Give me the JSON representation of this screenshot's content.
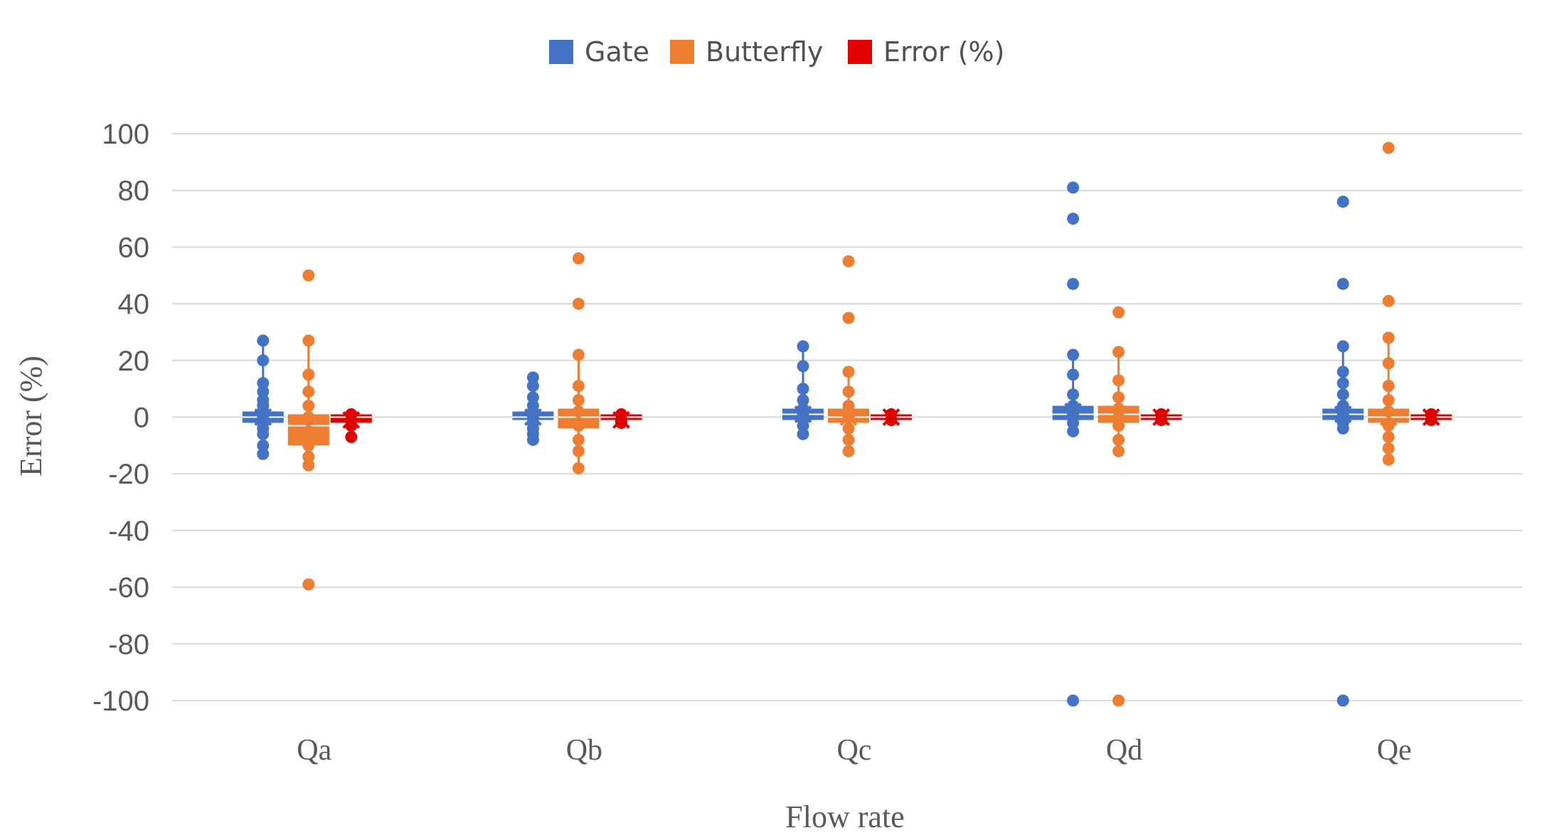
{
  "chart_data": {
    "type": "box",
    "title": "",
    "xlabel": "Flow rate",
    "ylabel": "Error (%)",
    "ylim": [
      -100,
      100
    ],
    "yticks": [
      100,
      80,
      60,
      40,
      20,
      0,
      -20,
      -40,
      -60,
      -80,
      -100
    ],
    "grid": true,
    "legend_position": "top-center",
    "categories": [
      "Qa",
      "Qb",
      "Qc",
      "Qd",
      "Qe"
    ],
    "series": [
      {
        "name": "Gate",
        "color": "#4472c4",
        "boxes": [
          {
            "q1": -2,
            "q3": 2,
            "median": 0,
            "mean": 0,
            "points": [
              27,
              20,
              12,
              9,
              6,
              4,
              2,
              0,
              -2,
              -4,
              -6,
              -10,
              -13
            ]
          },
          {
            "q1": -1,
            "q3": 2,
            "median": 0,
            "mean": 0,
            "points": [
              14,
              11,
              7,
              4,
              2,
              0,
              -2,
              -4,
              -6,
              -8
            ]
          },
          {
            "q1": -1,
            "q3": 3,
            "median": 1,
            "mean": 1,
            "points": [
              25,
              18,
              10,
              6,
              3,
              1,
              -1,
              -3,
              -6
            ]
          },
          {
            "q1": -1,
            "q3": 4,
            "median": 1,
            "mean": 2,
            "points": [
              81,
              70,
              47,
              22,
              15,
              8,
              4,
              1,
              -2,
              -5,
              -100
            ]
          },
          {
            "q1": -1,
            "q3": 3,
            "median": 1,
            "mean": 1,
            "points": [
              76,
              47,
              25,
              16,
              12,
              8,
              4,
              1,
              -2,
              -4,
              -100
            ]
          }
        ]
      },
      {
        "name": "Butterfly",
        "color": "#ed7d31",
        "boxes": [
          {
            "q1": -10,
            "q3": 1,
            "median": -3,
            "mean": -3,
            "points": [
              50,
              27,
              15,
              9,
              4,
              0,
              -5,
              -10,
              -14,
              -17,
              -59
            ]
          },
          {
            "q1": -4,
            "q3": 3,
            "median": 0,
            "mean": 0,
            "points": [
              56,
              40,
              22,
              11,
              6,
              2,
              -3,
              -8,
              -12,
              -18
            ]
          },
          {
            "q1": -2,
            "q3": 3,
            "median": 0,
            "mean": 0,
            "points": [
              55,
              35,
              16,
              9,
              4,
              0,
              -4,
              -8,
              -12
            ]
          },
          {
            "q1": -2,
            "q3": 4,
            "median": 1,
            "mean": 1,
            "points": [
              37,
              23,
              13,
              7,
              3,
              0,
              -3,
              -8,
              -12,
              -100
            ]
          },
          {
            "q1": -2,
            "q3": 3,
            "median": 0,
            "mean": 0,
            "points": [
              95,
              41,
              28,
              19,
              11,
              6,
              2,
              -3,
              -7,
              -11,
              -15
            ]
          }
        ]
      },
      {
        "name": "Error (%)",
        "color": "#e00000",
        "boxes": [
          {
            "q1": -2,
            "q3": 1,
            "median": 0,
            "mean": -1,
            "points": [
              1,
              -1,
              -3,
              -7
            ]
          },
          {
            "q1": -1,
            "q3": 1,
            "median": 0,
            "mean": -1,
            "points": [
              1,
              -1,
              -2
            ]
          },
          {
            "q1": -1,
            "q3": 1,
            "median": 0,
            "mean": 0,
            "points": [
              1,
              -1
            ]
          },
          {
            "q1": -1,
            "q3": 1,
            "median": 0,
            "mean": 0,
            "points": [
              1,
              -1
            ]
          },
          {
            "q1": -1,
            "q3": 1,
            "median": 0,
            "mean": 0,
            "points": [
              1,
              -1
            ]
          }
        ]
      }
    ]
  }
}
